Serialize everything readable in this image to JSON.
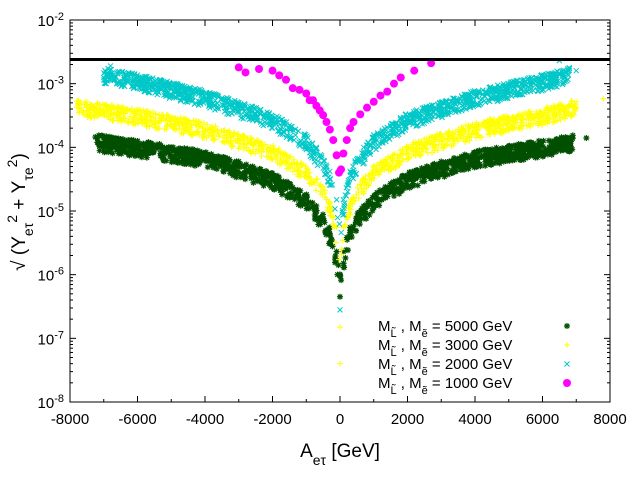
{
  "chart_data": {
    "type": "scatter",
    "title": "",
    "xlabel": "A_{eτ} [GeV]",
    "ylabel": "√(Y_{eτ}² + Y_{τe}²)",
    "x_scale": "linear",
    "y_scale": "log",
    "xlim": [
      -8000,
      8000
    ],
    "ylim": [
      1e-08,
      0.01
    ],
    "x_ticks": [
      {
        "value": -8000,
        "label": "-8000"
      },
      {
        "value": -6000,
        "label": "-6000"
      },
      {
        "value": -4000,
        "label": "-4000"
      },
      {
        "value": -2000,
        "label": "-2000"
      },
      {
        "value": 0,
        "label": "0"
      },
      {
        "value": 2000,
        "label": "2000"
      },
      {
        "value": 4000,
        "label": "4000"
      },
      {
        "value": 6000,
        "label": "6000"
      },
      {
        "value": 8000,
        "label": "8000"
      }
    ],
    "y_ticks": [
      {
        "value": 1e-08,
        "base": "10",
        "exp": "-8"
      },
      {
        "value": 1e-07,
        "base": "10",
        "exp": "-7"
      },
      {
        "value": 1e-06,
        "base": "10",
        "exp": "-6"
      },
      {
        "value": 1e-05,
        "base": "10",
        "exp": "-5"
      },
      {
        "value": 0.0001,
        "base": "10",
        "exp": "-4"
      },
      {
        "value": 0.001,
        "base": "10",
        "exp": "-3"
      },
      {
        "value": 0.01,
        "base": "10",
        "exp": "-2"
      }
    ],
    "grid": false,
    "legend_position": "bottom-right",
    "bound_line": {
      "y": 0.0024,
      "color": "#000000"
    },
    "series": [
      {
        "name": "M_L̃ , M_ẽ = 5000 GeV",
        "name_parts": {
          "mass": "M",
          "sub1": "L̃",
          "sep": " , ",
          "sub2": "ẽ",
          "rest": " = 5000 GeV"
        },
        "color": "#005000",
        "marker": "star",
        "mass": 5000,
        "envelope": [
          [
            -7200,
            0.00014
          ],
          [
            -6000,
            0.000115
          ],
          [
            -4000,
            7.8e-05
          ],
          [
            -2000,
            3.6e-05
          ],
          [
            -1000,
            1.65e-05
          ],
          [
            -500,
            8e-06
          ],
          [
            -200,
            3.5e-06
          ],
          [
            -50,
            1.3e-06
          ],
          [
            0,
            1.1e-06
          ],
          [
            50,
            1.3e-06
          ],
          [
            200,
            3.5e-06
          ],
          [
            500,
            8e-06
          ],
          [
            1000,
            1.65e-05
          ],
          [
            2000,
            3.6e-05
          ],
          [
            4000,
            7.8e-05
          ],
          [
            6000,
            0.000115
          ],
          [
            6900,
            0.00014
          ]
        ],
        "points": [
          [
            -6600,
            0.00013
          ],
          [
            -5000,
            0.0001
          ],
          [
            -3000,
            6e-05
          ],
          [
            -1500,
            2.7e-05
          ],
          [
            -700,
            1.2e-05
          ],
          [
            -300,
            5.5e-06
          ],
          [
            -100,
            2.3e-06
          ],
          [
            0,
            4.5e-07
          ],
          [
            100,
            2.3e-06
          ],
          [
            300,
            5.5e-06
          ],
          [
            700,
            1.2e-05
          ],
          [
            1500,
            2.7e-05
          ],
          [
            3000,
            6e-05
          ],
          [
            5000,
            0.0001
          ],
          [
            6800,
            0.000135
          ],
          [
            7300,
            0.00014
          ],
          [
            -7250,
            0.000145
          ]
        ]
      },
      {
        "name": "M_L̃ , M_ẽ = 3000 GeV",
        "name_parts": {
          "mass": "M",
          "sub1": "L̃",
          "sep": " , ",
          "sub2": "ẽ",
          "rest": " = 3000 GeV"
        },
        "color": "#ffff00",
        "marker": "plus",
        "mass": 3000,
        "envelope": [
          [
            -7800,
            0.0005
          ],
          [
            -6000,
            0.00036
          ],
          [
            -4000,
            0.00022
          ],
          [
            -2000,
            0.0001
          ],
          [
            -1000,
            4.6e-05
          ],
          [
            -500,
            2.2e-05
          ],
          [
            -200,
            9e-06
          ],
          [
            -50,
            3e-06
          ],
          [
            0,
            2.5e-06
          ],
          [
            50,
            3e-06
          ],
          [
            200,
            9e-06
          ],
          [
            500,
            2.2e-05
          ],
          [
            1000,
            4.6e-05
          ],
          [
            2000,
            0.0001
          ],
          [
            4000,
            0.00022
          ],
          [
            6000,
            0.00036
          ],
          [
            7000,
            0.0005
          ]
        ],
        "points": [
          [
            -7700,
            0.00052
          ],
          [
            -5000,
            0.00029
          ],
          [
            -3000,
            0.00016
          ],
          [
            -1500,
            7e-05
          ],
          [
            -700,
            3.2e-05
          ],
          [
            -300,
            1.4e-05
          ],
          [
            -100,
            5.5e-06
          ],
          [
            0,
            4e-08
          ],
          [
            0,
            1.5e-07
          ],
          [
            100,
            5.5e-06
          ],
          [
            300,
            1.4e-05
          ],
          [
            700,
            3.2e-05
          ],
          [
            1500,
            7e-05
          ],
          [
            3000,
            0.00016
          ],
          [
            5000,
            0.00029
          ],
          [
            6600,
            0.00045
          ],
          [
            7800,
            0.00058
          ]
        ]
      },
      {
        "name": "M_L̃ , M_ẽ = 2000 GeV",
        "name_parts": {
          "mass": "M",
          "sub1": "L̃",
          "sep": " , ",
          "sub2": "ẽ",
          "rest": " = 2000 GeV"
        },
        "color": "#00c8c8",
        "marker": "cross",
        "mass": 2000,
        "envelope": [
          [
            -7000,
            0.0016
          ],
          [
            -6000,
            0.00125
          ],
          [
            -4000,
            0.0007
          ],
          [
            -2000,
            0.00031
          ],
          [
            -1000,
            0.00014
          ],
          [
            -500,
            6.5e-05
          ],
          [
            -200,
            2.6e-05
          ],
          [
            -50,
            8e-06
          ],
          [
            0,
            6e-06
          ],
          [
            50,
            8e-06
          ],
          [
            200,
            2.6e-05
          ],
          [
            500,
            6.5e-05
          ],
          [
            1000,
            0.00014
          ],
          [
            2000,
            0.00031
          ],
          [
            4000,
            0.0007
          ],
          [
            6000,
            0.00125
          ],
          [
            6800,
            0.0016
          ]
        ],
        "points": [
          [
            -6800,
            0.0019
          ],
          [
            -5000,
            0.00095
          ],
          [
            -3000,
            0.0005
          ],
          [
            -1500,
            0.00022
          ],
          [
            -700,
            0.0001
          ],
          [
            -300,
            4.2e-05
          ],
          [
            -100,
            1.5e-05
          ],
          [
            0,
            2.8e-07
          ],
          [
            100,
            1.5e-05
          ],
          [
            300,
            4.2e-05
          ],
          [
            700,
            0.0001
          ],
          [
            1500,
            0.00022
          ],
          [
            3000,
            0.0005
          ],
          [
            5000,
            0.00095
          ],
          [
            6500,
            0.0023
          ],
          [
            7000,
            0.0016
          ]
        ]
      },
      {
        "name": "M_L̃ , M_ẽ = 1000 GeV",
        "name_parts": {
          "mass": "M",
          "sub1": "L̃",
          "sep": " , ",
          "sub2": "ẽ",
          "rest": " = 1000 GeV"
        },
        "color": "#ff00ff",
        "marker": "circle",
        "mass": 1000,
        "points": [
          [
            -3000,
            0.0018
          ],
          [
            -2800,
            0.0015
          ],
          [
            -2400,
            0.0017
          ],
          [
            -2000,
            0.0016
          ],
          [
            -1800,
            0.00135
          ],
          [
            -1600,
            0.00115
          ],
          [
            -1400,
            0.00085
          ],
          [
            -1200,
            0.0008
          ],
          [
            -1000,
            0.0007
          ],
          [
            -900,
            0.00055
          ],
          [
            -800,
            0.00055
          ],
          [
            -700,
            0.00045
          ],
          [
            -600,
            0.00038
          ],
          [
            -500,
            0.00032
          ],
          [
            -400,
            0.00025
          ],
          [
            -300,
            0.00019
          ],
          [
            -200,
            0.00013
          ],
          [
            -100,
            7.5e-05
          ],
          [
            -30,
            4e-05
          ],
          [
            30,
            4.5e-05
          ],
          [
            100,
            8e-05
          ],
          [
            200,
            0.00013
          ],
          [
            300,
            0.0002
          ],
          [
            400,
            0.00025
          ],
          [
            600,
            0.00033
          ],
          [
            800,
            0.00042
          ],
          [
            1000,
            0.00052
          ],
          [
            1200,
            0.00065
          ],
          [
            1400,
            0.00075
          ],
          [
            1600,
            0.001
          ],
          [
            1800,
            0.00125
          ],
          [
            2200,
            0.0016
          ],
          [
            2700,
            0.0021
          ]
        ]
      }
    ]
  }
}
